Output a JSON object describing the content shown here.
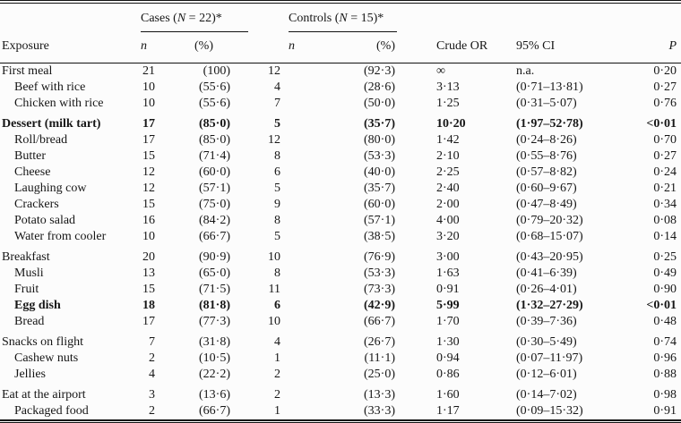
{
  "style": {
    "background": "#fcfcfc",
    "text_color": "#161616",
    "rule_color": "#111111"
  },
  "table": {
    "headers": {
      "exposure": "Exposure",
      "cases_group_pre": "Cases (",
      "cases_group_n": "N",
      "cases_group_post": " = 22)*",
      "controls_group_pre": "Controls (",
      "controls_group_n": "N",
      "controls_group_post": " = 15)*",
      "n_label": "n",
      "pct_label": "(%)",
      "crude_or": "Crude OR",
      "ci": "95% CI",
      "p": "P"
    },
    "groups": [
      {
        "rows": [
          {
            "exposure": "First meal",
            "indent": false,
            "bold": false,
            "cases_n": "21",
            "cases_pct": "(100)",
            "controls_n": "12",
            "controls_pct": "(92·3)",
            "or": "∞",
            "ci": "n.a.",
            "p": "0·20"
          },
          {
            "exposure": "Beef with rice",
            "indent": true,
            "bold": false,
            "cases_n": "10",
            "cases_pct": "(55·6)",
            "controls_n": "4",
            "controls_pct": "(28·6)",
            "or": "3·13",
            "ci": "(0·71–13·81)",
            "p": "0·27"
          },
          {
            "exposure": "Chicken with rice",
            "indent": true,
            "bold": false,
            "cases_n": "10",
            "cases_pct": "(55·6)",
            "controls_n": "7",
            "controls_pct": "(50·0)",
            "or": "1·25",
            "ci": "(0·31–5·07)",
            "p": "0·76"
          }
        ]
      },
      {
        "rows": [
          {
            "exposure": "Dessert (milk tart)",
            "indent": false,
            "bold": true,
            "cases_n": "17",
            "cases_pct": "(85·0)",
            "controls_n": "5",
            "controls_pct": "(35·7)",
            "or": "10·20",
            "ci": "(1·97–52·78)",
            "p": "<0·01"
          },
          {
            "exposure": "Roll/bread",
            "indent": true,
            "bold": false,
            "cases_n": "17",
            "cases_pct": "(85·0)",
            "controls_n": "12",
            "controls_pct": "(80·0)",
            "or": "1·42",
            "ci": "(0·24–8·26)",
            "p": "0·70"
          },
          {
            "exposure": "Butter",
            "indent": true,
            "bold": false,
            "cases_n": "15",
            "cases_pct": "(71·4)",
            "controls_n": "8",
            "controls_pct": "(53·3)",
            "or": "2·10",
            "ci": "(0·55–8·76)",
            "p": "0·27"
          },
          {
            "exposure": "Cheese",
            "indent": true,
            "bold": false,
            "cases_n": "12",
            "cases_pct": "(60·0)",
            "controls_n": "6",
            "controls_pct": "(40·0)",
            "or": "2·25",
            "ci": "(0·57–8·82)",
            "p": "0·24"
          },
          {
            "exposure": "Laughing cow",
            "indent": true,
            "bold": false,
            "cases_n": "12",
            "cases_pct": "(57·1)",
            "controls_n": "5",
            "controls_pct": "(35·7)",
            "or": "2·40",
            "ci": "(0·60–9·67)",
            "p": "0·21"
          },
          {
            "exposure": "Crackers",
            "indent": true,
            "bold": false,
            "cases_n": "15",
            "cases_pct": "(75·0)",
            "controls_n": "9",
            "controls_pct": "(60·0)",
            "or": "2·00",
            "ci": "(0·47–8·49)",
            "p": "0·34"
          },
          {
            "exposure": "Potato salad",
            "indent": true,
            "bold": false,
            "cases_n": "16",
            "cases_pct": "(84·2)",
            "controls_n": "8",
            "controls_pct": "(57·1)",
            "or": "4·00",
            "ci": "(0·79–20·32)",
            "p": "0·08"
          },
          {
            "exposure": "Water from cooler",
            "indent": true,
            "bold": false,
            "cases_n": "10",
            "cases_pct": "(66·7)",
            "controls_n": "5",
            "controls_pct": "(38·5)",
            "or": "3·20",
            "ci": "(0·68–15·07)",
            "p": "0·14"
          }
        ]
      },
      {
        "rows": [
          {
            "exposure": "Breakfast",
            "indent": false,
            "bold": false,
            "cases_n": "20",
            "cases_pct": "(90·9)",
            "controls_n": "10",
            "controls_pct": "(76·9)",
            "or": "3·00",
            "ci": "(0·43–20·95)",
            "p": "0·25"
          },
          {
            "exposure": "Musli",
            "indent": true,
            "bold": false,
            "cases_n": "13",
            "cases_pct": "(65·0)",
            "controls_n": "8",
            "controls_pct": "(53·3)",
            "or": "1·63",
            "ci": "(0·41–6·39)",
            "p": "0·49"
          },
          {
            "exposure": "Fruit",
            "indent": true,
            "bold": false,
            "cases_n": "15",
            "cases_pct": "(71·5)",
            "controls_n": "11",
            "controls_pct": "(73·3)",
            "or": "0·91",
            "ci": "(0·26–4·01)",
            "p": "0·90"
          },
          {
            "exposure": "Egg dish",
            "indent": true,
            "bold": true,
            "cases_n": "18",
            "cases_pct": "(81·8)",
            "controls_n": "6",
            "controls_pct": "(42·9)",
            "or": "5·99",
            "ci": "(1·32–27·29)",
            "p": "<0·01"
          },
          {
            "exposure": "Bread",
            "indent": true,
            "bold": false,
            "cases_n": "17",
            "cases_pct": "(77·3)",
            "controls_n": "10",
            "controls_pct": "(66·7)",
            "or": "1·70",
            "ci": "(0·39–7·36)",
            "p": "0·48"
          }
        ]
      },
      {
        "rows": [
          {
            "exposure": "Snacks on flight",
            "indent": false,
            "bold": false,
            "cases_n": "7",
            "cases_pct": "(31·8)",
            "controls_n": "4",
            "controls_pct": "(26·7)",
            "or": "1·30",
            "ci": "(0·30–5·49)",
            "p": "0·74"
          },
          {
            "exposure": "Cashew nuts",
            "indent": true,
            "bold": false,
            "cases_n": "2",
            "cases_pct": "(10·5)",
            "controls_n": "1",
            "controls_pct": "(11·1)",
            "or": "0·94",
            "ci": "(0·07–11·97)",
            "p": "0·96"
          },
          {
            "exposure": "Jellies",
            "indent": true,
            "bold": false,
            "cases_n": "4",
            "cases_pct": "(22·2)",
            "controls_n": "2",
            "controls_pct": "(25·0)",
            "or": "0·86",
            "ci": "(0·12–6·01)",
            "p": "0·88"
          }
        ]
      },
      {
        "rows": [
          {
            "exposure": "Eat at the airport",
            "indent": false,
            "bold": false,
            "cases_n": "3",
            "cases_pct": "(13·6)",
            "controls_n": "2",
            "controls_pct": "(13·3)",
            "or": "1·60",
            "ci": "(0·14–7·02)",
            "p": "0·98"
          },
          {
            "exposure": "Packaged food",
            "indent": true,
            "bold": false,
            "cases_n": "2",
            "cases_pct": "(66·7)",
            "controls_n": "1",
            "controls_pct": "(33·3)",
            "or": "1·17",
            "ci": "(0·09–15·32)",
            "p": "0·91"
          }
        ]
      }
    ]
  }
}
